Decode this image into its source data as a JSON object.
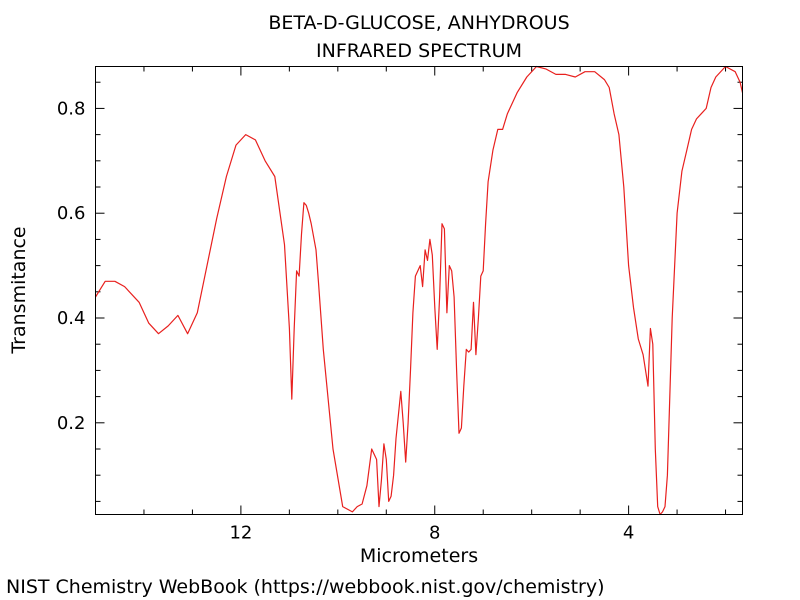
{
  "footer": "NIST Chemistry WebBook (https://webbook.nist.gov/chemistry)",
  "chart_data": {
    "type": "line",
    "title": [
      "BETA-D-GLUCOSE, ANHYDROUS",
      "INFRARED SPECTRUM"
    ],
    "xlabel": "Micrometers",
    "ylabel": "Transmitance",
    "xlim": [
      15.0,
      1.65
    ],
    "ylim": [
      0.025,
      0.88
    ],
    "x_reversed": true,
    "x_ticks": [
      12,
      8,
      4
    ],
    "y_ticks": [
      0.2,
      0.4,
      0.6,
      0.8
    ],
    "grid": false,
    "line_color": "#e8201e",
    "series": [
      {
        "x": [
          15.0,
          14.9,
          14.8,
          14.6,
          14.4,
          14.1,
          13.9,
          13.7,
          13.5,
          13.3,
          13.1,
          12.9,
          12.7,
          12.5,
          12.3,
          12.1,
          11.9,
          11.7,
          11.5,
          11.3,
          11.1,
          11.0,
          10.95,
          10.9,
          10.85,
          10.8,
          10.75,
          10.7,
          10.65,
          10.6,
          10.55,
          10.45,
          10.4,
          10.3,
          10.1,
          9.9,
          9.7,
          9.6,
          9.5,
          9.4,
          9.3,
          9.2,
          9.15,
          9.1,
          9.05,
          9.0,
          8.95,
          8.9,
          8.85,
          8.8,
          8.7,
          8.65,
          8.6,
          8.55,
          8.5,
          8.45,
          8.4,
          8.3,
          8.25,
          8.2,
          8.15,
          8.1,
          8.05,
          8.0,
          7.95,
          7.9,
          7.85,
          7.8,
          7.75,
          7.7,
          7.65,
          7.6,
          7.55,
          7.5,
          7.45,
          7.4,
          7.35,
          7.3,
          7.25,
          7.2,
          7.15,
          7.1,
          7.05,
          7.0,
          6.95,
          6.9,
          6.8,
          6.7,
          6.6,
          6.5,
          6.3,
          6.1,
          5.9,
          5.7,
          5.5,
          5.3,
          5.1,
          4.9,
          4.7,
          4.5,
          4.4,
          4.3,
          4.2,
          4.1,
          4.0,
          3.9,
          3.8,
          3.7,
          3.6,
          3.55,
          3.5,
          3.45,
          3.4,
          3.35,
          3.3,
          3.25,
          3.2,
          3.1,
          3.0,
          2.9,
          2.8,
          2.7,
          2.6,
          2.5,
          2.4,
          2.3,
          2.2,
          2.0,
          1.8,
          1.7,
          1.65
        ],
        "y": [
          0.44,
          0.455,
          0.47,
          0.47,
          0.46,
          0.43,
          0.39,
          0.37,
          0.385,
          0.405,
          0.37,
          0.41,
          0.5,
          0.59,
          0.67,
          0.73,
          0.75,
          0.74,
          0.7,
          0.67,
          0.54,
          0.38,
          0.245,
          0.38,
          0.49,
          0.48,
          0.56,
          0.62,
          0.615,
          0.6,
          0.58,
          0.53,
          0.47,
          0.34,
          0.15,
          0.04,
          0.03,
          0.04,
          0.045,
          0.08,
          0.15,
          0.13,
          0.04,
          0.09,
          0.16,
          0.13,
          0.05,
          0.06,
          0.1,
          0.17,
          0.26,
          0.2,
          0.125,
          0.2,
          0.3,
          0.41,
          0.48,
          0.5,
          0.46,
          0.53,
          0.51,
          0.55,
          0.52,
          0.42,
          0.34,
          0.44,
          0.58,
          0.57,
          0.41,
          0.5,
          0.49,
          0.44,
          0.3,
          0.18,
          0.19,
          0.27,
          0.34,
          0.335,
          0.34,
          0.43,
          0.33,
          0.4,
          0.48,
          0.49,
          0.58,
          0.66,
          0.72,
          0.76,
          0.76,
          0.79,
          0.83,
          0.86,
          0.88,
          0.875,
          0.865,
          0.865,
          0.86,
          0.87,
          0.87,
          0.855,
          0.84,
          0.79,
          0.75,
          0.65,
          0.5,
          0.42,
          0.36,
          0.33,
          0.27,
          0.38,
          0.35,
          0.15,
          0.04,
          0.025,
          0.03,
          0.04,
          0.1,
          0.4,
          0.6,
          0.68,
          0.72,
          0.76,
          0.78,
          0.79,
          0.8,
          0.84,
          0.86,
          0.88,
          0.87,
          0.85,
          0.83
        ]
      }
    ]
  }
}
